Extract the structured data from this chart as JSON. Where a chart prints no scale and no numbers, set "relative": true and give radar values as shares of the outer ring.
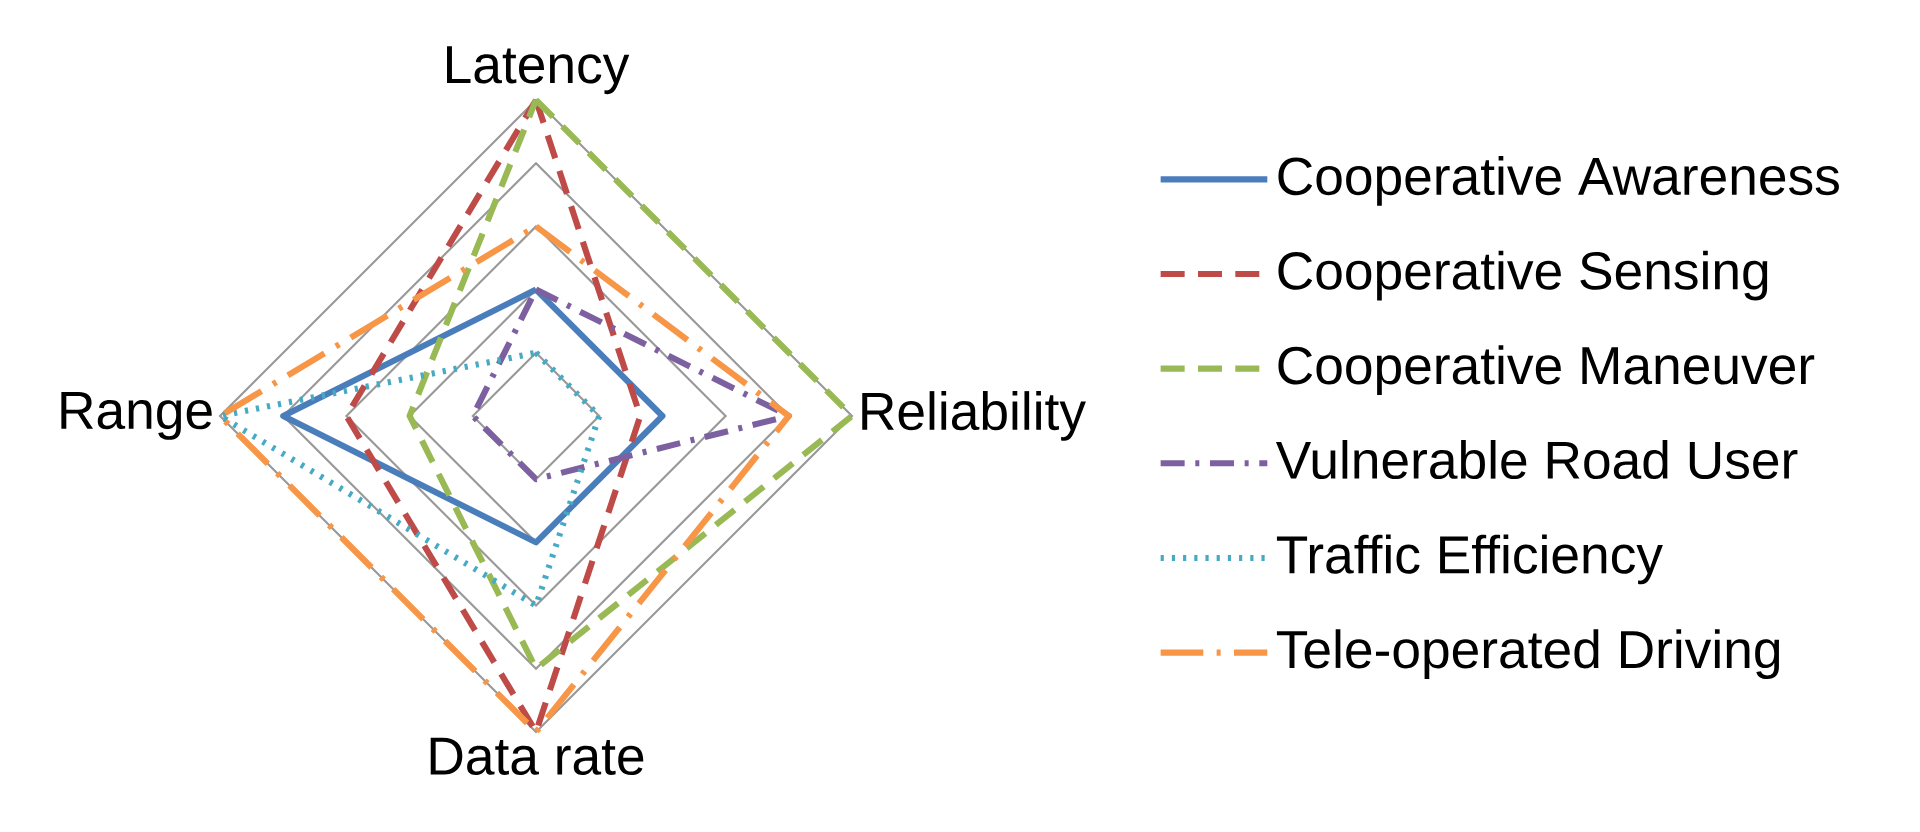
{
  "chart_data": {
    "type": "radar",
    "relative": true,
    "grid": true,
    "legend": "right",
    "categories": [
      "Latency",
      "Reliability",
      "Data rate",
      "Range"
    ],
    "series": [
      {
        "name": "Cooperative Awareness",
        "color": "#4a7ebb",
        "line_style": "solid",
        "values": [
          0.4,
          0.4,
          0.4,
          0.8
        ]
      },
      {
        "name": "Cooperative Sensing",
        "color": "#be4b48",
        "line_style": "dashed",
        "values": [
          1,
          0.33,
          1,
          0.6
        ]
      },
      {
        "name": "Cooperative Maneuver",
        "color": "#98b954",
        "line_style": "dashed",
        "values": [
          1,
          1,
          0.8,
          0.4
        ]
      },
      {
        "name": "Vulnerable Road User",
        "color": "#7d60a0",
        "line_style": "dashdot",
        "values": [
          0.4,
          0.8,
          0.2,
          0.2
        ]
      },
      {
        "name": "Traffic Efficiency",
        "color": "#46aac5",
        "line_style": "dotted",
        "values": [
          0.2,
          0.2,
          0.6,
          1
        ]
      },
      {
        "name": "Tele-operated Driving",
        "color": "#f79646",
        "line_style": "longdashdot",
        "values": [
          0.6,
          0.8,
          1,
          1
        ]
      }
    ]
  }
}
